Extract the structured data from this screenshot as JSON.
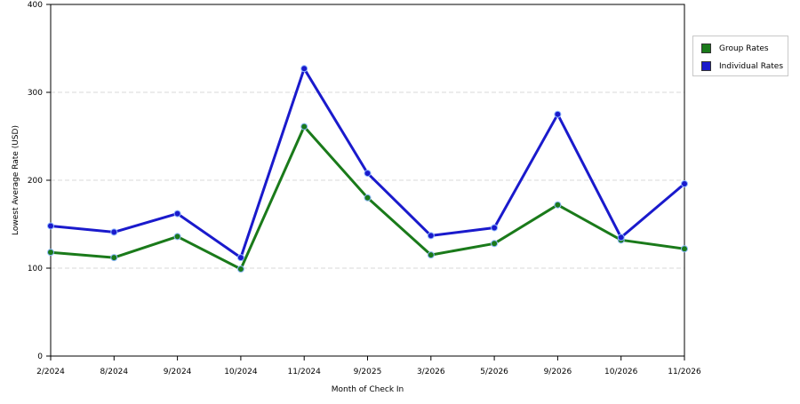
{
  "chart_data": {
    "type": "line",
    "xlabel": "Month of Check In",
    "ylabel": "Lowest Average Rate (USD)",
    "categories": [
      "2/2024",
      "8/2024",
      "9/2024",
      "10/2024",
      "11/2024",
      "9/2025",
      "3/2026",
      "5/2026",
      "9/2026",
      "10/2026",
      "11/2026"
    ],
    "ylim": [
      0,
      400
    ],
    "yticks": [
      0,
      100,
      200,
      300,
      400
    ],
    "grid": true,
    "legend_position": "right",
    "series": [
      {
        "name": "Group Rates",
        "color": "#1a7a1a",
        "values": [
          118,
          112,
          136,
          99,
          261,
          180,
          115,
          128,
          172,
          132,
          122
        ]
      },
      {
        "name": "Individual Rates",
        "color": "#1a1acc",
        "values": [
          148,
          141,
          162,
          112,
          327,
          208,
          137,
          146,
          275,
          135,
          196
        ]
      }
    ]
  }
}
